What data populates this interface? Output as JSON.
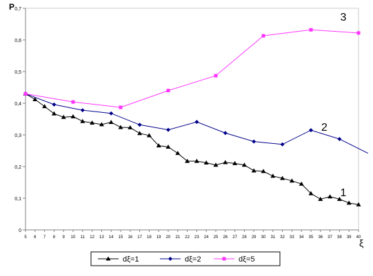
{
  "chart_data": {
    "type": "line",
    "ylabel": "P",
    "xlabel": "ξ",
    "ylim": [
      0,
      0.7
    ],
    "yticks": [
      "0",
      "0,1",
      "0,2",
      "0,3",
      "0,4",
      "0,5",
      "0,6",
      "0,7"
    ],
    "xlim": [
      5,
      40
    ],
    "xticks": [
      "5",
      "6",
      "7",
      "8",
      "9",
      "10",
      "11",
      "12",
      "13",
      "14",
      "15",
      "16",
      "17",
      "18",
      "19",
      "20",
      "21",
      "22",
      "23",
      "24",
      "25",
      "26",
      "27",
      "28",
      "29",
      "30",
      "31",
      "32",
      "33",
      "34",
      "35",
      "36",
      "37",
      "38",
      "39",
      "40"
    ],
    "legend_position": "bottom",
    "series": [
      {
        "name": "dξ=1",
        "curve_label": "1",
        "color": "#000000",
        "marker": "triangle",
        "x": [
          5,
          6,
          7,
          8,
          9,
          10,
          11,
          12,
          13,
          14,
          15,
          16,
          17,
          18,
          19,
          20,
          21,
          22,
          23,
          24,
          25,
          26,
          27,
          28,
          29,
          30,
          31,
          32,
          33,
          34,
          35,
          36,
          37,
          38,
          39,
          40
        ],
        "values": [
          0.43,
          0.412,
          0.39,
          0.367,
          0.356,
          0.358,
          0.343,
          0.338,
          0.333,
          0.34,
          0.324,
          0.323,
          0.305,
          0.298,
          0.266,
          0.262,
          0.242,
          0.217,
          0.217,
          0.212,
          0.205,
          0.213,
          0.21,
          0.205,
          0.187,
          0.185,
          0.17,
          0.163,
          0.155,
          0.145,
          0.115,
          0.097,
          0.105,
          0.097,
          0.085,
          0.08
        ]
      },
      {
        "name": "dξ=2",
        "curve_label": "2",
        "color": "#00008b",
        "marker": "diamond",
        "x": [
          5,
          8,
          11,
          14,
          17,
          20,
          23,
          26,
          29,
          32,
          35,
          38,
          41
        ],
        "values": [
          0.43,
          0.396,
          0.378,
          0.368,
          0.332,
          0.316,
          0.341,
          0.306,
          0.279,
          0.27,
          0.315,
          0.287,
          0.242
        ]
      },
      {
        "name": "dξ=5",
        "curve_label": "3",
        "color": "#ff33ff",
        "marker": "square",
        "x": [
          5,
          10,
          15,
          20,
          25,
          30,
          35,
          40
        ],
        "values": [
          0.43,
          0.404,
          0.387,
          0.44,
          0.487,
          0.613,
          0.632,
          0.622
        ]
      }
    ]
  }
}
